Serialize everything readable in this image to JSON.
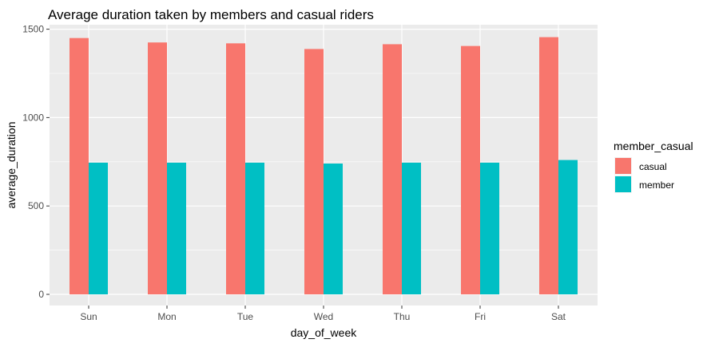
{
  "chart_data": {
    "type": "bar",
    "title": "Average duration taken by members and casual riders",
    "xlabel": "day_of_week",
    "ylabel": "average_duration",
    "categories": [
      "Sun",
      "Mon",
      "Tue",
      "Wed",
      "Thu",
      "Fri",
      "Sat"
    ],
    "series": [
      {
        "name": "casual",
        "color": "#F8766D",
        "values": [
          1450,
          1425,
          1420,
          1388,
          1415,
          1405,
          1455
        ]
      },
      {
        "name": "member",
        "color": "#00BFC4",
        "values": [
          745,
          745,
          745,
          740,
          745,
          745,
          760
        ]
      }
    ],
    "ylim": [
      0,
      1500
    ],
    "yticks": [
      0,
      500,
      1000,
      1500
    ],
    "grid": true,
    "legend": {
      "title": "member_casual",
      "position": "right",
      "entries": [
        "casual",
        "member"
      ]
    },
    "panel_background": "#EBEBEB",
    "grid_color": "#FFFFFF",
    "text_color": "#4D4D4D"
  }
}
